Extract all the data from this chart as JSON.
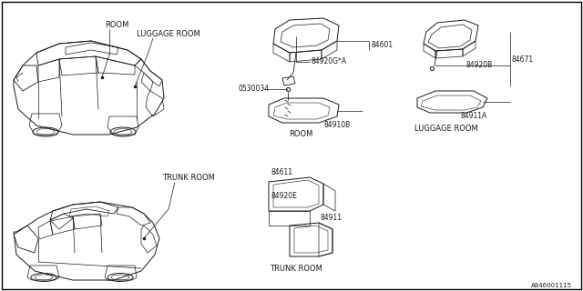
{
  "bg_color": "#ffffff",
  "border_color": "#000000",
  "line_color": "#1a1a1a",
  "text_color": "#1a1a1a",
  "diagram_id": "A846001115",
  "labels": {
    "room_top": "ROOM",
    "luggage_room_top": "LUGGAGE ROOM",
    "trunk_room": "TRUNK ROOM",
    "room_bottom": "ROOM",
    "luggage_room_bottom": "LUGGAGE ROOM",
    "trunk_room_bottom": "TRUNK ROOM"
  },
  "part_numbers": {
    "p84601": "84601",
    "p84920GA": "84920G*A",
    "p0530034": "0530034",
    "p84910B": "84910B",
    "p84920B": "84920B",
    "p84671": "84671",
    "p84911A": "84911A",
    "p84611": "84611",
    "p84920E": "84920E",
    "p84911": "84911"
  },
  "font_size_label": 6.0,
  "font_size_part": 5.5,
  "font_size_id": 5.0
}
